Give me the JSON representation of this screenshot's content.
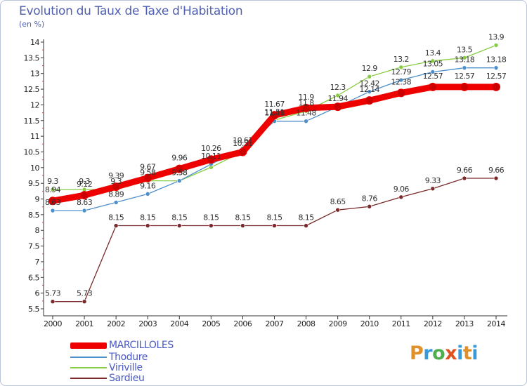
{
  "title": "Evolution du Taux de Taxe d'Habitation",
  "subtitle": "(en %)",
  "logo": {
    "text": "Proxiti",
    "parts": [
      "P",
      "r",
      "o",
      "x",
      "i",
      "t",
      "i"
    ]
  },
  "chart_data": {
    "type": "line",
    "x": [
      "2000",
      "2001",
      "2002",
      "2003",
      "2004",
      "2005",
      "2006",
      "2007",
      "2008",
      "2009",
      "2010",
      "2011",
      "2012",
      "2013",
      "2014"
    ],
    "ylim": [
      5.5,
      14
    ],
    "yticks": [
      "5.5",
      "6",
      "6.5",
      "7",
      "7.5",
      "8",
      "8.5",
      "9",
      "9.5",
      "10",
      "10.5",
      "11",
      "11.5",
      "12",
      "12.5",
      "13",
      "13.5",
      "14"
    ],
    "grid": false,
    "series": [
      {
        "name": "MARCILLOLES",
        "color": "#ee0000",
        "values": [
          8.94,
          9.12,
          9.39,
          9.67,
          9.96,
          10.26,
          10.5,
          11.67,
          11.9,
          11.94,
          12.14,
          12.38,
          12.57,
          12.57,
          12.57
        ],
        "labels": [
          "8.94",
          "9.12",
          "9.39",
          "9.67",
          "9.96",
          "10.26",
          "",
          "11.67",
          "11.9",
          "",
          "12.14",
          "12.38",
          "12.57",
          "12.57",
          "12.57"
        ]
      },
      {
        "name": "Thodure",
        "color": "#4d8fcb",
        "values": [
          8.63,
          8.63,
          8.89,
          9.16,
          9.58,
          10.11,
          10.61,
          11.48,
          11.48,
          11.94,
          12.42,
          12.79,
          13.05,
          13.18,
          13.18
        ],
        "labels": [
          "8.63",
          "8.63",
          "8.89",
          "9.16",
          "9.58",
          "10.11",
          "10.61",
          "11.48",
          "11.48",
          "11.94",
          "12.42",
          "12.79",
          "13.05",
          "13.18",
          "13.18"
        ]
      },
      {
        "name": "Viriville",
        "color": "#88cc44",
        "values": [
          9.3,
          9.3,
          9.3,
          9.58,
          9.58,
          10.01,
          10.51,
          11.51,
          11.8,
          12.3,
          12.9,
          13.2,
          13.4,
          13.5,
          13.9
        ],
        "labels": [
          "9.3",
          "9.3",
          "9.3",
          "9.58",
          "9.58",
          "",
          "10.51",
          "11.51",
          "11.8",
          "12.3",
          "12.9",
          "13.2",
          "13.4",
          "13.5",
          "13.9"
        ]
      },
      {
        "name": "Sardieu",
        "color": "#7a2a2a",
        "values": [
          5.73,
          5.73,
          8.15,
          8.15,
          8.15,
          8.15,
          8.15,
          8.15,
          8.15,
          8.65,
          8.76,
          9.06,
          9.33,
          9.66,
          9.66
        ],
        "labels": [
          "5.73",
          "5.73",
          "8.15",
          "8.15",
          "8.15",
          "8.15",
          "8.15",
          "8.15",
          "8.15",
          "8.65",
          "8.76",
          "9.06",
          "9.33",
          "9.66",
          "9.66"
        ]
      }
    ]
  }
}
